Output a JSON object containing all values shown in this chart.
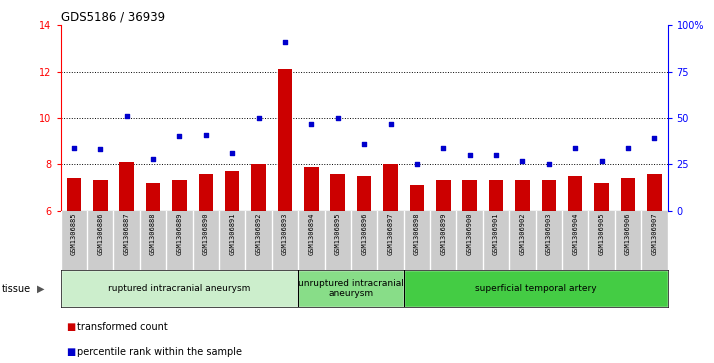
{
  "title": "GDS5186 / 36939",
  "samples": [
    "GSM1306885",
    "GSM1306886",
    "GSM1306887",
    "GSM1306888",
    "GSM1306889",
    "GSM1306890",
    "GSM1306891",
    "GSM1306892",
    "GSM1306893",
    "GSM1306894",
    "GSM1306895",
    "GSM1306896",
    "GSM1306897",
    "GSM1306898",
    "GSM1306899",
    "GSM1306900",
    "GSM1306901",
    "GSM1306902",
    "GSM1306903",
    "GSM1306904",
    "GSM1306905",
    "GSM1306906",
    "GSM1306907"
  ],
  "bar_values": [
    7.4,
    7.3,
    8.1,
    7.2,
    7.3,
    7.6,
    7.7,
    8.0,
    12.1,
    7.9,
    7.6,
    7.5,
    8.0,
    7.1,
    7.3,
    7.3,
    7.3,
    7.3,
    7.3,
    7.5,
    7.2,
    7.4,
    7.6
  ],
  "scatter_values_pct": [
    34,
    33,
    51,
    28,
    40,
    41,
    31,
    50,
    91,
    47,
    50,
    36,
    47,
    25,
    34,
    30,
    30,
    27,
    25,
    34,
    27,
    34,
    39
  ],
  "ylim_left": [
    6,
    14
  ],
  "ylim_right": [
    0,
    100
  ],
  "yticks_left": [
    6,
    8,
    10,
    12,
    14
  ],
  "yticks_right": [
    0,
    25,
    50,
    75,
    100
  ],
  "bar_color": "#cc0000",
  "scatter_color": "#0000cc",
  "bar_bottom": 6,
  "groups": [
    {
      "label": "ruptured intracranial aneurysm",
      "start": 0,
      "end": 9,
      "color": "#cceecc"
    },
    {
      "label": "unruptured intracranial\naneurysm",
      "start": 9,
      "end": 13,
      "color": "#88dd88"
    },
    {
      "label": "superficial temporal artery",
      "start": 13,
      "end": 23,
      "color": "#44cc44"
    }
  ],
  "tissue_label": "tissue",
  "legend_bar_label": "transformed count",
  "legend_scatter_label": "percentile rank within the sample",
  "plot_bg_color": "#ffffff"
}
